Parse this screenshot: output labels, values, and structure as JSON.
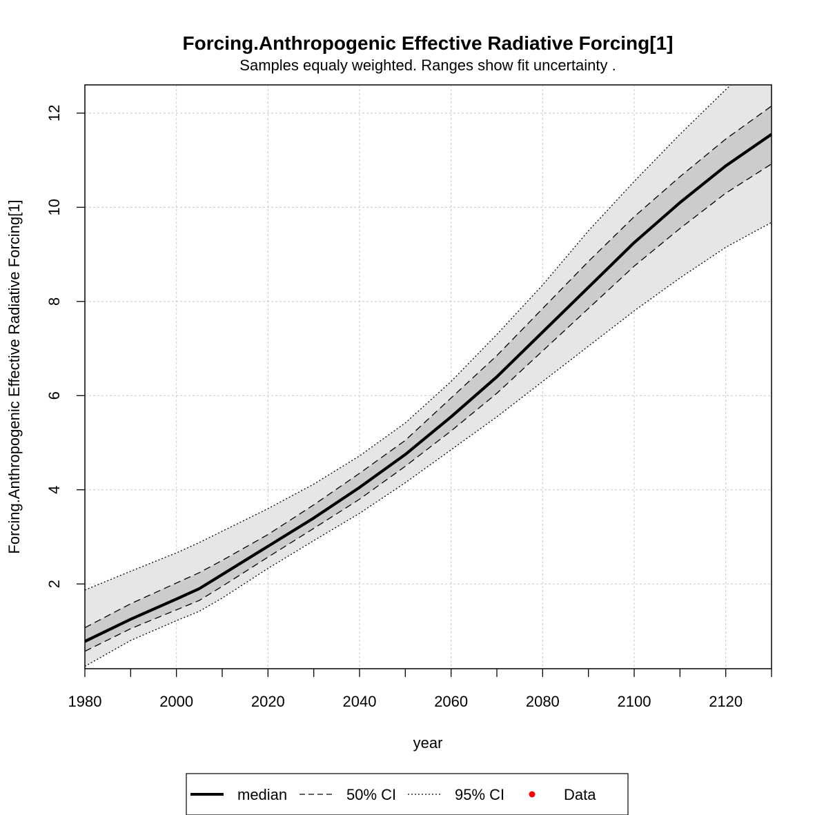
{
  "chart_data": {
    "type": "line",
    "title": "Forcing.Anthropogenic Effective Radiative Forcing[1]",
    "subtitle": "Samples equaly weighted. Ranges show  fit uncertainty .",
    "xlabel": "year",
    "ylabel": "Forcing.Anthropogenic Effective Radiative Forcing[1]",
    "xlim": [
      1980,
      2130
    ],
    "ylim": [
      0.2,
      12.6
    ],
    "grid": true,
    "x_ticks": [
      1980,
      1990,
      2000,
      2010,
      2020,
      2030,
      2040,
      2050,
      2060,
      2070,
      2080,
      2090,
      2100,
      2110,
      2120,
      2130
    ],
    "x_tick_labels": [
      "1980",
      "2000",
      "2020",
      "2040",
      "2060",
      "2080",
      "2100",
      "2120"
    ],
    "x_tick_label_values": [
      1980,
      2000,
      2020,
      2040,
      2060,
      2080,
      2100,
      2120
    ],
    "y_ticks": [
      2,
      4,
      6,
      8,
      10,
      12
    ],
    "y_tick_labels": [
      "2",
      "4",
      "6",
      "8",
      "10",
      "12"
    ],
    "x": [
      1980,
      1990,
      2000,
      2005,
      2010,
      2020,
      2030,
      2040,
      2050,
      2060,
      2070,
      2080,
      2090,
      2100,
      2110,
      2120,
      2130
    ],
    "series": [
      {
        "name": "median",
        "style": "solid",
        "values": [
          0.78,
          1.25,
          1.68,
          1.9,
          2.2,
          2.8,
          3.4,
          4.05,
          4.75,
          5.55,
          6.4,
          7.35,
          8.3,
          9.25,
          10.1,
          10.88,
          11.55
        ]
      },
      {
        "name": "50% CI",
        "bound": "upper",
        "style": "dashed",
        "values": [
          1.07,
          1.58,
          2.02,
          2.24,
          2.5,
          3.05,
          3.68,
          4.35,
          5.05,
          5.95,
          6.85,
          7.85,
          8.85,
          9.8,
          10.65,
          11.45,
          12.15
        ]
      },
      {
        "name": "50% CI",
        "bound": "lower",
        "style": "dashed",
        "values": [
          0.57,
          1.05,
          1.45,
          1.65,
          1.95,
          2.57,
          3.18,
          3.8,
          4.5,
          5.25,
          6.05,
          6.95,
          7.85,
          8.75,
          9.55,
          10.3,
          10.92
        ]
      },
      {
        "name": "95% CI",
        "bound": "upper",
        "style": "dotted",
        "values": [
          1.87,
          2.27,
          2.66,
          2.88,
          3.12,
          3.6,
          4.12,
          4.72,
          5.42,
          6.3,
          7.3,
          8.35,
          9.5,
          10.55,
          11.55,
          12.5,
          13.4
        ]
      },
      {
        "name": "95% CI",
        "bound": "lower",
        "style": "dotted",
        "values": [
          0.25,
          0.8,
          1.22,
          1.42,
          1.7,
          2.33,
          2.92,
          3.5,
          4.15,
          4.85,
          5.55,
          6.3,
          7.05,
          7.8,
          8.5,
          9.15,
          9.68
        ]
      }
    ],
    "colors": {
      "band95": "#e6e6e6",
      "band50": "#cccccc",
      "line": "#000000",
      "grid": "#c8c8c8",
      "data_point": "#ff0000"
    },
    "legend": {
      "placement": "bottom",
      "items": [
        {
          "label": "median",
          "style": "solid"
        },
        {
          "label": "50% CI",
          "style": "dashed"
        },
        {
          "label": "95% CI",
          "style": "dotted"
        },
        {
          "label": "Data",
          "style": "point"
        }
      ]
    }
  }
}
